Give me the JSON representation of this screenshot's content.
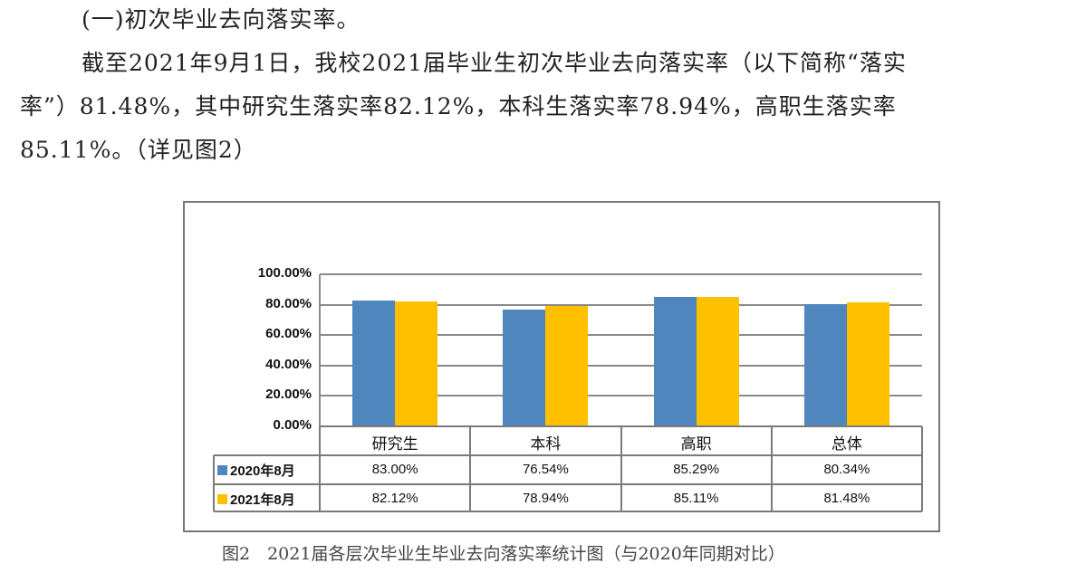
{
  "document": {
    "heading": "(一)初次毕业去向落实率。",
    "paragraph_lines": [
      "截至2021年9月1日，我校2021届毕业生初次毕业去向落实率（以下简称“落实",
      "率”）81.48%，其中研究生落实率82.12%，本科生落实率78.94%，高职生落实率",
      "85.11%。（详见图2）"
    ],
    "caption": "图2　2021届各层次毕业生毕业去向落实率统计图（与2020年同期对比）"
  },
  "chart_data": {
    "type": "bar",
    "title": "",
    "xlabel": "",
    "ylabel": "",
    "ylim": [
      0,
      100
    ],
    "y_ticks": [
      "100.00%",
      "80.00%",
      "60.00%",
      "40.00%",
      "20.00%",
      "0.00%"
    ],
    "grid": true,
    "legend_position": "data-table (bottom-left)",
    "categories": [
      "研究生",
      "本科",
      "高职",
      "总体"
    ],
    "series": [
      {
        "name": "2020年8月",
        "color": "#4f86be",
        "values": [
          83.0,
          76.54,
          85.29,
          80.34
        ],
        "labels": [
          "83.00%",
          "76.54%",
          "85.29%",
          "80.34%"
        ]
      },
      {
        "name": "2021年8月",
        "color": "#ffc000",
        "values": [
          82.12,
          78.94,
          85.11,
          81.48
        ],
        "labels": [
          "82.12%",
          "78.94%",
          "85.11%",
          "81.48%"
        ]
      }
    ]
  }
}
